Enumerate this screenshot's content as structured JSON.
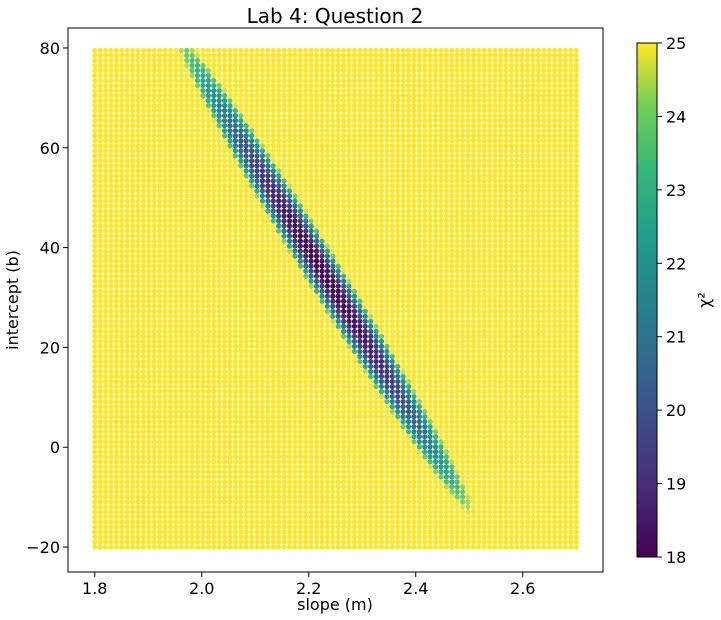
{
  "chart_data": {
    "type": "scatter",
    "title": "Lab 4: Question 2",
    "xlabel": "slope (m)",
    "ylabel": "intercept (b)",
    "xlim": [
      1.75,
      2.75
    ],
    "ylim": [
      -25,
      84
    ],
    "xticks": [
      1.8,
      2.0,
      2.2,
      2.4,
      2.6
    ],
    "xtick_labels": [
      "1.8",
      "2.0",
      "2.2",
      "2.4",
      "2.6"
    ],
    "yticks": [
      -20,
      0,
      20,
      40,
      60,
      80
    ],
    "ytick_labels": [
      "−20",
      "0",
      "20",
      "40",
      "60",
      "80"
    ],
    "grid": false,
    "scatter_grid": {
      "slope_min": 1.8,
      "slope_max": 2.7,
      "slope_count": 90,
      "intercept_min": -20,
      "intercept_max": 79.5,
      "intercept_count": 100
    },
    "chi2_surface": {
      "min_chi2": 18.0,
      "min_slope": 2.25,
      "min_intercept": 31.0,
      "valley_endpoints": [
        [
          1.98,
          79.0
        ],
        [
          2.49,
          -10.0
        ]
      ],
      "valley_half_width_slope": 0.04
    },
    "colorbar": {
      "label": "χ²",
      "colormap": "viridis",
      "vmin": 18,
      "vmax": 25,
      "ticks": [
        18,
        19,
        20,
        21,
        22,
        23,
        24,
        25
      ],
      "tick_labels": [
        "18",
        "19",
        "20",
        "21",
        "22",
        "23",
        "24",
        "25"
      ]
    }
  }
}
